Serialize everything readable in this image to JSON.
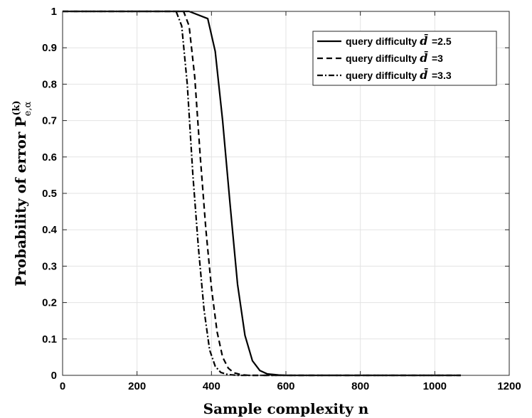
{
  "chart_data": {
    "type": "line",
    "xlabel": "Sample complexity n",
    "ylabel": {
      "prefix": "Probability of error ",
      "symbol": "P",
      "superscript": "(k)",
      "subscript": "e,α"
    },
    "xlim": [
      0,
      1200
    ],
    "ylim": [
      0,
      1
    ],
    "x_ticks": [
      0,
      200,
      400,
      600,
      800,
      1000,
      1200
    ],
    "y_ticks": [
      0,
      0.1,
      0.2,
      0.3,
      0.4,
      0.5,
      0.6,
      0.7,
      0.8,
      0.9,
      1
    ],
    "x_tick_labels": [
      "0",
      "200",
      "400",
      "600",
      "800",
      "1000",
      "1200"
    ],
    "y_tick_labels": [
      "0",
      "0.1",
      "0.2",
      "0.3",
      "0.4",
      "0.5",
      "0.6",
      "0.7",
      "0.8",
      "0.9",
      "1"
    ],
    "grid": true,
    "legend_position": "top-right",
    "series": [
      {
        "name": "query difficulty d̄ =2.5",
        "legend_prefix": "query difficulty",
        "legend_var": "d̄",
        "legend_value": "=2.5",
        "style": "solid",
        "points": [
          [
            0,
            1
          ],
          [
            340,
            1
          ],
          [
            390,
            0.98
          ],
          [
            410,
            0.89
          ],
          [
            430,
            0.7
          ],
          [
            450,
            0.47
          ],
          [
            470,
            0.25
          ],
          [
            490,
            0.11
          ],
          [
            510,
            0.04
          ],
          [
            530,
            0.013
          ],
          [
            550,
            0.004
          ],
          [
            580,
            0.001
          ],
          [
            600,
            0
          ],
          [
            1070,
            0
          ]
        ]
      },
      {
        "name": "query difficulty d̄ =3",
        "legend_prefix": "query difficulty",
        "legend_var": "d̄",
        "legend_value": "=3",
        "style": "dashed",
        "points": [
          [
            0,
            1
          ],
          [
            325,
            1
          ],
          [
            340,
            0.96
          ],
          [
            355,
            0.82
          ],
          [
            370,
            0.6
          ],
          [
            385,
            0.4
          ],
          [
            400,
            0.24
          ],
          [
            415,
            0.12
          ],
          [
            430,
            0.05
          ],
          [
            445,
            0.02
          ],
          [
            460,
            0.007
          ],
          [
            480,
            0.002
          ],
          [
            500,
            0
          ],
          [
            1070,
            0
          ]
        ]
      },
      {
        "name": "query difficulty d̄ =3.3",
        "legend_prefix": "query difficulty",
        "legend_var": "d̄",
        "legend_value": "=3.3",
        "style": "dashdot",
        "points": [
          [
            0,
            1
          ],
          [
            305,
            1
          ],
          [
            320,
            0.96
          ],
          [
            335,
            0.8
          ],
          [
            350,
            0.55
          ],
          [
            365,
            0.35
          ],
          [
            380,
            0.18
          ],
          [
            395,
            0.07
          ],
          [
            410,
            0.025
          ],
          [
            425,
            0.008
          ],
          [
            445,
            0.002
          ],
          [
            470,
            0
          ],
          [
            1070,
            0
          ]
        ]
      }
    ]
  }
}
